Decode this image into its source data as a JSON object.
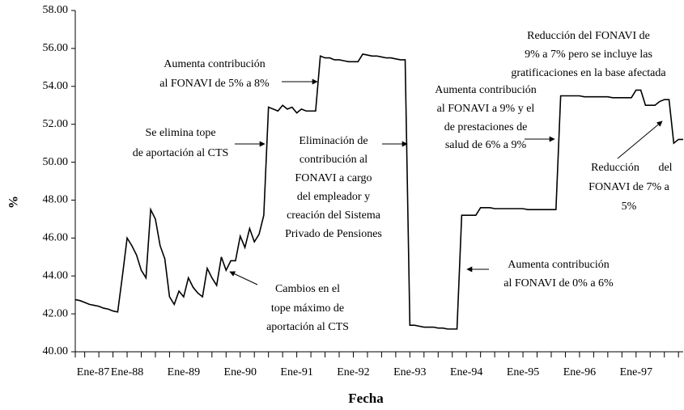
{
  "chart_data": {
    "type": "line",
    "x_label": "Fecha",
    "y_label": "%",
    "categories": [
      "Ene-87",
      null,
      null,
      null,
      null,
      null,
      null,
      null,
      null,
      null,
      null,
      "Ene-88",
      null,
      null,
      null,
      null,
      null,
      null,
      null,
      null,
      null,
      null,
      null,
      "Ene-89",
      null,
      null,
      null,
      null,
      null,
      null,
      null,
      null,
      null,
      null,
      null,
      "Ene-90",
      null,
      null,
      null,
      null,
      null,
      null,
      null,
      null,
      null,
      null,
      null,
      "Ene-91",
      null,
      null,
      null,
      null,
      null,
      null,
      null,
      null,
      null,
      null,
      null,
      "Ene-92",
      null,
      null,
      null,
      null,
      null,
      null,
      null,
      null,
      null,
      null,
      null,
      "Ene-93",
      null,
      null,
      null,
      null,
      null,
      null,
      null,
      null,
      null,
      null,
      null,
      "Ene-94",
      null,
      null,
      null,
      null,
      null,
      null,
      null,
      null,
      null,
      null,
      null,
      "Ene-95",
      null,
      null,
      null,
      null,
      null,
      null,
      null,
      null,
      null,
      null,
      null,
      "Ene-96",
      null,
      null,
      null,
      null,
      null,
      null,
      null,
      null,
      null,
      null,
      null,
      "Ene-97",
      null,
      null,
      null,
      null,
      null,
      null,
      null,
      null,
      null,
      null
    ],
    "series": [
      {
        "color": "#000000",
        "values": [
          42.75,
          42.7,
          42.6,
          42.5,
          42.45,
          42.4,
          42.3,
          42.25,
          42.15,
          42.1,
          44.0,
          46.0,
          45.6,
          45.1,
          44.3,
          43.9,
          47.5,
          47.0,
          45.6,
          44.9,
          42.9,
          42.5,
          43.2,
          42.9,
          43.9,
          43.4,
          43.1,
          42.9,
          44.4,
          43.9,
          43.5,
          45.0,
          44.3,
          44.8,
          44.8,
          46.1,
          45.5,
          46.5,
          45.8,
          46.2,
          47.2,
          52.9,
          52.8,
          52.7,
          53.0,
          52.8,
          52.9,
          52.6,
          52.8,
          52.7,
          52.7,
          52.7,
          55.6,
          55.5,
          55.5,
          55.4,
          55.4,
          55.35,
          55.3,
          55.3,
          55.3,
          55.7,
          55.65,
          55.6,
          55.6,
          55.55,
          55.5,
          55.5,
          55.45,
          55.4,
          55.4,
          41.4,
          41.4,
          41.35,
          41.3,
          41.3,
          41.3,
          41.25,
          41.25,
          41.2,
          41.2,
          41.2,
          47.2,
          47.2,
          47.2,
          47.2,
          47.6,
          47.6,
          47.6,
          47.55,
          47.55,
          47.55,
          47.55,
          47.55,
          47.55,
          47.55,
          47.5,
          47.5,
          47.5,
          47.5,
          47.5,
          47.5,
          47.5,
          53.5,
          53.5,
          53.5,
          53.5,
          53.5,
          53.45,
          53.45,
          53.45,
          53.45,
          53.45,
          53.45,
          53.4,
          53.4,
          53.4,
          53.4,
          53.4,
          53.8,
          53.8,
          53.0,
          53.0,
          53.0,
          53.2,
          53.3,
          53.3,
          51.0,
          51.2,
          51.2
        ]
      }
    ],
    "ylim": [
      40,
      58
    ],
    "yticks": [
      {
        "value": 40,
        "label": "40.00"
      },
      {
        "value": 42,
        "label": "42.00"
      },
      {
        "value": 44,
        "label": "44.00"
      },
      {
        "value": 46,
        "label": "46.00"
      },
      {
        "value": 48,
        "label": "48.00"
      },
      {
        "value": 50,
        "label": "50.00"
      },
      {
        "value": 52,
        "label": "52.00"
      },
      {
        "value": 54,
        "label": "54.00"
      },
      {
        "value": 56,
        "label": "56.00"
      },
      {
        "value": 58,
        "label": "58.00"
      }
    ],
    "annotations": [
      [
        "Aumenta contribución",
        "al FONAVI de 5% a 8%"
      ],
      [
        "Se elimina tope",
        "de aportación al CTS"
      ],
      [
        "Eliminación de",
        "contribución al",
        "FONAVI a cargo",
        "del empleador y",
        "creación del Sistema",
        "Privado de Pensiones"
      ],
      [
        "Cambios en el",
        "tope máximo de",
        "aportación al CTS"
      ],
      [
        "Reducción del FONAVI de",
        "9% a 7% pero se incluye las",
        "gratificaciones en la base afectada"
      ],
      [
        "Aumenta contribución",
        "al FONAVI a 9% y el",
        "de prestaciones de",
        "salud de 6% a 9%"
      ],
      [
        "Reducción",
        "del",
        "FONAVI de 7% a",
        "5%"
      ],
      [
        "Aumenta contribución",
        "al FONAVI de 0% a 6%"
      ]
    ]
  }
}
